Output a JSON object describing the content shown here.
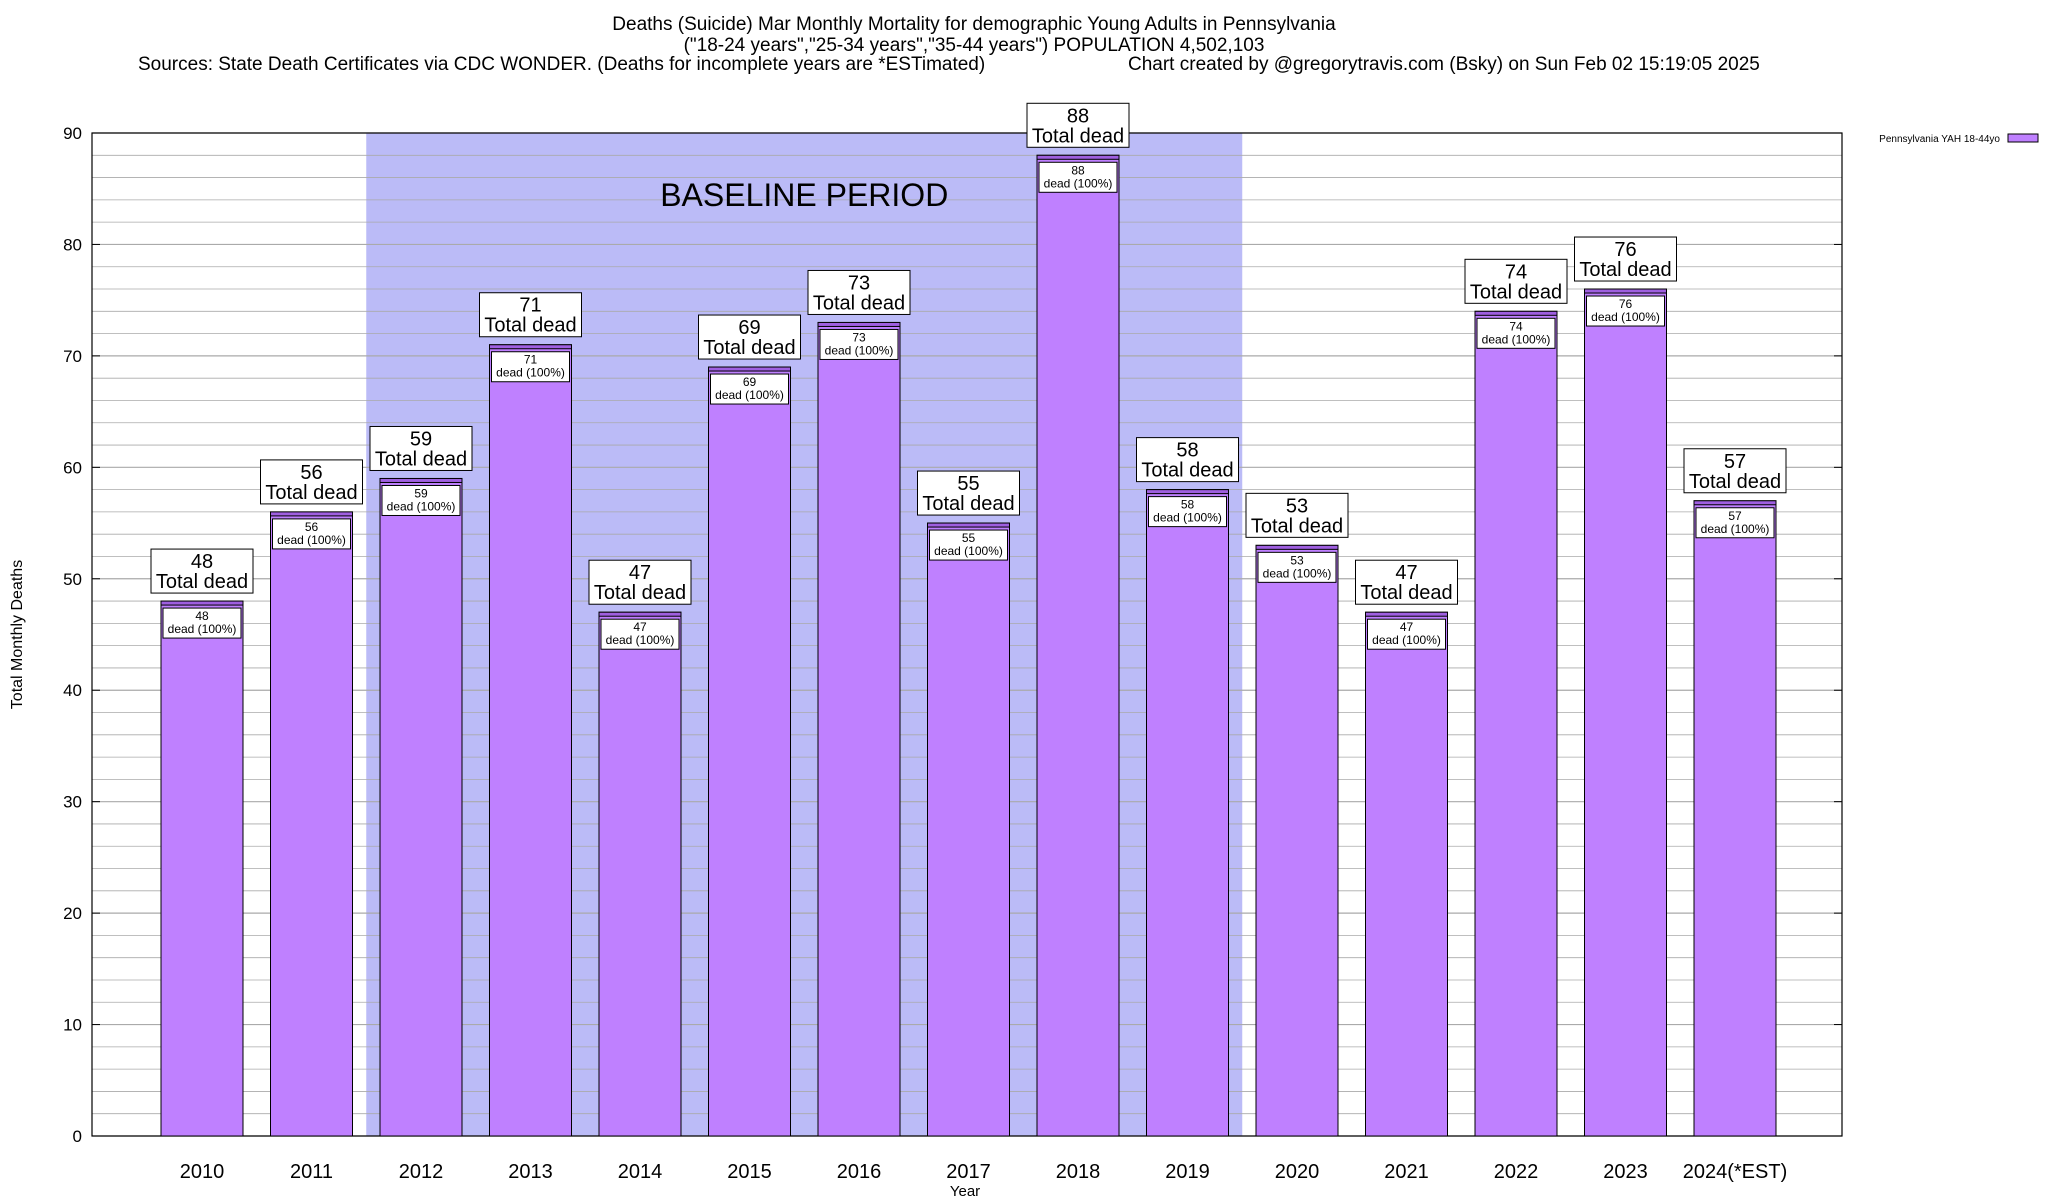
{
  "header": {
    "title_line1": "Deaths (Suicide) Mar Monthly Mortality for demographic Young Adults in Pennsylvania",
    "title_line2": "(\"18-24 years\",\"25-34 years\",\"35-44 years\") POPULATION 4,502,103",
    "sources": "Sources: State Death Certificates via CDC WONDER. (Deaths for incomplete years are *ESTimated)",
    "credit": "Chart created by @gregorytravis.com (Bsky) on Sun Feb 02 15:19:05 2025"
  },
  "colors": {
    "bar_fill": "#bf80ff",
    "bar_top": "#9f5fe0",
    "baseline_shade": "#bbbbf7",
    "grid": "#aaaaaa"
  },
  "chart_data": {
    "type": "bar",
    "xlabel": "Year",
    "ylabel": "Total Monthly Deaths",
    "ylim": [
      0,
      90
    ],
    "yticks": [
      0,
      10,
      20,
      30,
      40,
      50,
      60,
      70,
      80,
      90
    ],
    "grid": true,
    "legend_position": "top-right",
    "categories": [
      "2010",
      "2011",
      "2012",
      "2013",
      "2014",
      "2015",
      "2016",
      "2017",
      "2018",
      "2019",
      "2020",
      "2021",
      "2022",
      "2023",
      "2024(*EST)"
    ],
    "series": [
      {
        "name": "Pennsylvania YAH 18-44yo",
        "values": [
          48,
          56,
          59,
          71,
          47,
          69,
          73,
          55,
          88,
          58,
          53,
          47,
          74,
          76,
          57
        ]
      }
    ],
    "total_label_suffix": "Total dead",
    "inner_label_suffix": "dead (100%)",
    "shaded_region": {
      "label": "BASELINE PERIOD",
      "from_category": "2012",
      "to_category": "2019"
    }
  }
}
